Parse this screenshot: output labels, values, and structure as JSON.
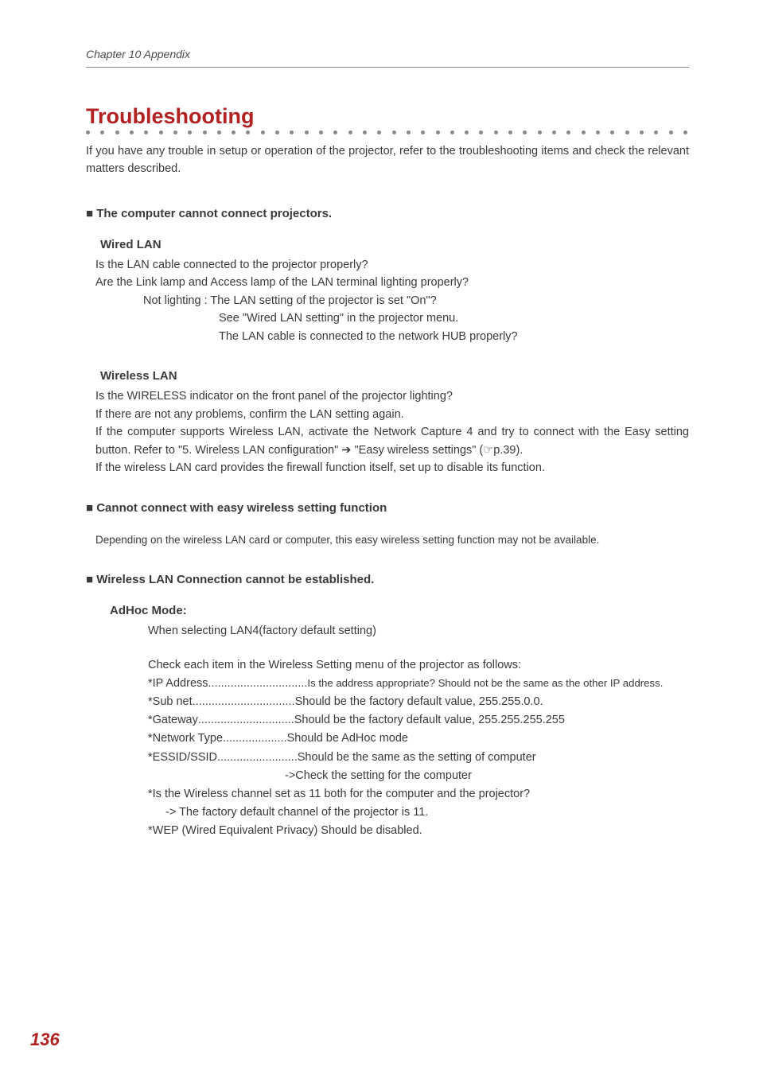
{
  "header": {
    "chapter": "Chapter 10 Appendix"
  },
  "title": "Troubleshooting",
  "intro": "If you have any trouble in setup or operation of the projector, refer to the troubleshooting items  and check the relevant matters described.",
  "sec1": {
    "head": "■ The computer cannot connect projectors.",
    "wired": {
      "title": "Wired LAN",
      "l1": "Is the LAN cable  connected to the projector properly?",
      "l2": "Are the Link lamp and Access lamp of the LAN terminal lighting properly?",
      "l3": "Not lighting : The LAN setting of the projector is set \"On\"?",
      "l4": "See \"Wired LAN setting\" in  the projector menu.",
      "l5": " The LAN cable is connected to the network HUB properly?"
    },
    "wireless": {
      "title": "Wireless LAN",
      "l1": "Is the WIRELESS indicator on the front panel of the projector lighting?",
      "l2": "If there are not any problems, confirm the LAN setting again.",
      "l3": "If the computer supports Wireless LAN, activate the Network Capture 4 and try to connect with the Easy setting button. Refer to \"5. Wireless LAN configuration\" ➔ \"Easy wireless settings\" (☞p.39).",
      "l4": " If the wireless LAN card provides the firewall function itself, set up to disable its function."
    }
  },
  "sec2": {
    "head": "■ Cannot connect with easy wireless setting function",
    "body": "Depending on the wireless LAN card or computer, this easy wireless setting function may not be available."
  },
  "sec3": {
    "head": "■ Wireless LAN Connection cannot be established.",
    "adhoc": {
      "title": "AdHoc Mode:",
      "when": "When selecting LAN4(factory default setting)",
      "check": "Check each item in the Wireless Setting menu of the projector as follows:",
      "rows": {
        "ip": {
          "label": "*IP Address",
          "dots": "...............................",
          "val": "Is the address appropriate? Should not be the same as the other IP address."
        },
        "sub": {
          "label": "*Sub net",
          "dots": "................................",
          "val": "Should be the factory default value, 255.255.0.0."
        },
        "gw": {
          "label": "*Gateway",
          "dots": "..............................",
          "val": "Should be the factory default value, 255.255.255.255"
        },
        "ntype": {
          "label": "*Network Type",
          "dots": "....................",
          "val": "Should be AdHoc mode"
        },
        "essid": {
          "label": "*ESSID/SSID",
          "dots": ".........................",
          "val": "Should be the same as the setting of computer"
        }
      },
      "arrow": "->Check the setting for the computer",
      "chan": "*Is the Wireless channel set as 11 both for the computer and the projector?",
      "chan2": "-> The factory default channel of the projector is 11.",
      "wep": "*WEP (Wired Equivalent Privacy) Should be disabled."
    }
  },
  "pageNum": "136",
  "dotCount": 42
}
